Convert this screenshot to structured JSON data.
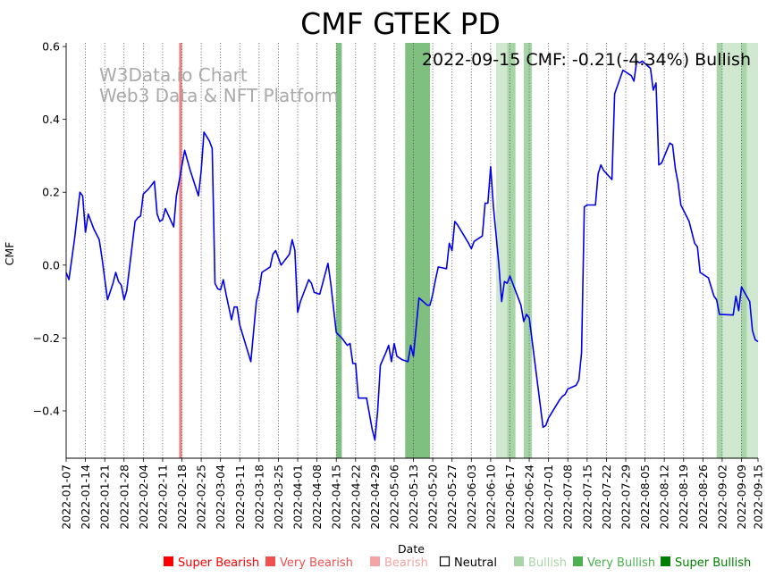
{
  "chart_data": {
    "type": "line",
    "title": "CMF GTEK PD",
    "xlabel": "Date",
    "ylabel": "CMF",
    "ylim": [
      -0.53,
      0.61
    ],
    "yticks": [
      -0.4,
      -0.2,
      0.0,
      0.2,
      0.4,
      0.6
    ],
    "ytick_labels": [
      "−0.4",
      "−0.2",
      "0.0",
      "0.2",
      "0.4",
      "0.6"
    ],
    "x_start": "2022-01-07",
    "x_end": "2022-09-15",
    "xticks": [
      "2022-01-07",
      "2022-01-14",
      "2022-01-21",
      "2022-01-28",
      "2022-02-04",
      "2022-02-11",
      "2022-02-18",
      "2022-02-25",
      "2022-03-04",
      "2022-03-11",
      "2022-03-18",
      "2022-03-25",
      "2022-04-01",
      "2022-04-08",
      "2022-04-15",
      "2022-04-22",
      "2022-04-29",
      "2022-05-06",
      "2022-05-13",
      "2022-05-20",
      "2022-05-27",
      "2022-06-03",
      "2022-06-10",
      "2022-06-17",
      "2022-06-24",
      "2022-07-01",
      "2022-07-08",
      "2022-07-15",
      "2022-07-22",
      "2022-07-29",
      "2022-08-05",
      "2022-08-12",
      "2022-08-19",
      "2022-08-26",
      "2022-09-02",
      "2022-09-09",
      "2022-09-15"
    ],
    "annotation": "2022-09-15 CMF: -0.21(-4.34%) Bullish",
    "watermark": [
      "W3Data.io Chart",
      "Web3 Data & NFT Platform"
    ],
    "series": [
      {
        "name": "CMF",
        "color": "#0000ee",
        "points": [
          [
            "2022-01-07",
            -0.02
          ],
          [
            "2022-01-08",
            -0.04
          ],
          [
            "2022-01-10",
            0.07
          ],
          [
            "2022-01-12",
            0.2
          ],
          [
            "2022-01-13",
            0.19
          ],
          [
            "2022-01-14",
            0.09
          ],
          [
            "2022-01-15",
            0.14
          ],
          [
            "2022-01-17",
            0.1
          ],
          [
            "2022-01-19",
            0.07
          ],
          [
            "2022-01-20",
            0.02
          ],
          [
            "2022-01-22",
            -0.095
          ],
          [
            "2022-01-24",
            -0.05
          ],
          [
            "2022-01-25",
            -0.02
          ],
          [
            "2022-01-26",
            -0.045
          ],
          [
            "2022-01-27",
            -0.055
          ],
          [
            "2022-01-28",
            -0.095
          ],
          [
            "2022-01-29",
            -0.07
          ],
          [
            "2022-02-01",
            0.12
          ],
          [
            "2022-02-02",
            0.13
          ],
          [
            "2022-02-03",
            0.135
          ],
          [
            "2022-02-04",
            0.195
          ],
          [
            "2022-02-06",
            0.21
          ],
          [
            "2022-02-08",
            0.23
          ],
          [
            "2022-02-09",
            0.14
          ],
          [
            "2022-02-10",
            0.12
          ],
          [
            "2022-02-11",
            0.125
          ],
          [
            "2022-02-12",
            0.155
          ],
          [
            "2022-02-15",
            0.105
          ],
          [
            "2022-02-16",
            0.19
          ],
          [
            "2022-02-17",
            0.23
          ],
          [
            "2022-02-19",
            0.315
          ],
          [
            "2022-02-21",
            0.26
          ],
          [
            "2022-02-24",
            0.19
          ],
          [
            "2022-02-25",
            0.26
          ],
          [
            "2022-02-26",
            0.365
          ],
          [
            "2022-02-28",
            0.34
          ],
          [
            "2022-03-01",
            0.32
          ],
          [
            "2022-03-02",
            -0.05
          ],
          [
            "2022-03-03",
            -0.065
          ],
          [
            "2022-03-04",
            -0.068
          ],
          [
            "2022-03-05",
            -0.04
          ],
          [
            "2022-03-06",
            -0.08
          ],
          [
            "2022-03-08",
            -0.15
          ],
          [
            "2022-03-09",
            -0.115
          ],
          [
            "2022-03-10",
            -0.115
          ],
          [
            "2022-03-11",
            -0.165
          ],
          [
            "2022-03-14",
            -0.24
          ],
          [
            "2022-03-15",
            -0.265
          ],
          [
            "2022-03-17",
            -0.1
          ],
          [
            "2022-03-18",
            -0.07
          ],
          [
            "2022-03-19",
            -0.02
          ],
          [
            "2022-03-22",
            -0.005
          ],
          [
            "2022-03-23",
            0.03
          ],
          [
            "2022-03-24",
            0.04
          ],
          [
            "2022-03-26",
            0.0
          ],
          [
            "2022-03-28",
            0.02
          ],
          [
            "2022-03-29",
            0.03
          ],
          [
            "2022-03-30",
            0.07
          ],
          [
            "2022-03-31",
            0.04
          ],
          [
            "2022-04-01",
            -0.13
          ],
          [
            "2022-04-02",
            -0.1
          ],
          [
            "2022-04-05",
            -0.04
          ],
          [
            "2022-04-06",
            -0.05
          ],
          [
            "2022-04-07",
            -0.075
          ],
          [
            "2022-04-09",
            -0.08
          ],
          [
            "2022-04-12",
            0.005
          ],
          [
            "2022-04-13",
            -0.05
          ],
          [
            "2022-04-15",
            -0.185
          ],
          [
            "2022-04-17",
            -0.2
          ],
          [
            "2022-04-19",
            -0.22
          ],
          [
            "2022-04-20",
            -0.215
          ],
          [
            "2022-04-21",
            -0.27
          ],
          [
            "2022-04-22",
            -0.27
          ],
          [
            "2022-04-23",
            -0.365
          ],
          [
            "2022-04-26",
            -0.365
          ],
          [
            "2022-04-28",
            -0.45
          ],
          [
            "2022-04-29",
            -0.48
          ],
          [
            "2022-04-30",
            -0.4
          ],
          [
            "2022-05-01",
            -0.275
          ],
          [
            "2022-05-03",
            -0.24
          ],
          [
            "2022-05-04",
            -0.22
          ],
          [
            "2022-05-05",
            -0.265
          ],
          [
            "2022-05-06",
            -0.215
          ],
          [
            "2022-05-07",
            -0.25
          ],
          [
            "2022-05-09",
            -0.26
          ],
          [
            "2022-05-11",
            -0.265
          ],
          [
            "2022-05-12",
            -0.22
          ],
          [
            "2022-05-13",
            -0.25
          ],
          [
            "2022-05-14",
            -0.17
          ],
          [
            "2022-05-15",
            -0.09
          ],
          [
            "2022-05-18",
            -0.11
          ],
          [
            "2022-05-19",
            -0.11
          ],
          [
            "2022-05-20",
            -0.08
          ],
          [
            "2022-05-21",
            -0.04
          ],
          [
            "2022-05-22",
            -0.005
          ],
          [
            "2022-05-25",
            -0.01
          ],
          [
            "2022-05-26",
            0.06
          ],
          [
            "2022-05-27",
            0.04
          ],
          [
            "2022-05-28",
            0.12
          ],
          [
            "2022-05-29",
            0.11
          ],
          [
            "2022-06-02",
            0.06
          ],
          [
            "2022-06-03",
            0.045
          ],
          [
            "2022-06-04",
            0.065
          ],
          [
            "2022-06-07",
            0.08
          ],
          [
            "2022-06-08",
            0.17
          ],
          [
            "2022-06-09",
            0.17
          ],
          [
            "2022-06-10",
            0.27
          ],
          [
            "2022-06-11",
            0.16
          ],
          [
            "2022-06-12",
            0.08
          ],
          [
            "2022-06-13",
            0.0
          ],
          [
            "2022-06-14",
            -0.1
          ],
          [
            "2022-06-15",
            -0.045
          ],
          [
            "2022-06-16",
            -0.05
          ],
          [
            "2022-06-17",
            -0.03
          ],
          [
            "2022-06-21",
            -0.11
          ],
          [
            "2022-06-22",
            -0.155
          ],
          [
            "2022-06-23",
            -0.135
          ],
          [
            "2022-06-24",
            -0.145
          ],
          [
            "2022-06-29",
            -0.445
          ],
          [
            "2022-06-30",
            -0.44
          ],
          [
            "2022-07-01",
            -0.42
          ],
          [
            "2022-07-05",
            -0.37
          ],
          [
            "2022-07-06",
            -0.36
          ],
          [
            "2022-07-07",
            -0.355
          ],
          [
            "2022-07-08",
            -0.34
          ],
          [
            "2022-07-11",
            -0.33
          ],
          [
            "2022-07-12",
            -0.315
          ],
          [
            "2022-07-13",
            -0.24
          ],
          [
            "2022-07-14",
            0.16
          ],
          [
            "2022-07-15",
            0.165
          ],
          [
            "2022-07-18",
            0.165
          ],
          [
            "2022-07-19",
            0.25
          ],
          [
            "2022-07-20",
            0.275
          ],
          [
            "2022-07-21",
            0.26
          ],
          [
            "2022-07-24",
            0.235
          ],
          [
            "2022-07-25",
            0.47
          ],
          [
            "2022-07-28",
            0.535
          ],
          [
            "2022-07-31",
            0.52
          ],
          [
            "2022-08-01",
            0.505
          ],
          [
            "2022-08-02",
            0.56
          ],
          [
            "2022-08-03",
            0.555
          ],
          [
            "2022-08-04",
            0.56
          ],
          [
            "2022-08-07",
            0.54
          ],
          [
            "2022-08-08",
            0.48
          ],
          [
            "2022-08-09",
            0.5
          ],
          [
            "2022-08-10",
            0.275
          ],
          [
            "2022-08-11",
            0.28
          ],
          [
            "2022-08-14",
            0.335
          ],
          [
            "2022-08-15",
            0.33
          ],
          [
            "2022-08-16",
            0.265
          ],
          [
            "2022-08-17",
            0.225
          ],
          [
            "2022-08-18",
            0.165
          ],
          [
            "2022-08-21",
            0.12
          ],
          [
            "2022-08-23",
            0.06
          ],
          [
            "2022-08-24",
            0.05
          ],
          [
            "2022-08-25",
            -0.02
          ],
          [
            "2022-08-28",
            -0.035
          ],
          [
            "2022-08-30",
            -0.085
          ],
          [
            "2022-08-31",
            -0.095
          ],
          [
            "2022-09-01",
            -0.135
          ],
          [
            "2022-09-06",
            -0.137
          ],
          [
            "2022-09-07",
            -0.085
          ],
          [
            "2022-09-08",
            -0.125
          ],
          [
            "2022-09-09",
            -0.06
          ],
          [
            "2022-09-12",
            -0.1
          ],
          [
            "2022-09-13",
            -0.18
          ],
          [
            "2022-09-14",
            -0.205
          ],
          [
            "2022-09-15",
            -0.21
          ]
        ]
      }
    ],
    "bands": [
      {
        "start": "2022-02-17",
        "end": "2022-02-18",
        "color": "#f08080",
        "category": "Very Bearish"
      },
      {
        "start": "2022-04-15",
        "end": "2022-04-17",
        "color": "#7fbf7f",
        "category": "Very Bullish"
      },
      {
        "start": "2022-05-10",
        "end": "2022-05-19",
        "color": "#7fbf7f",
        "category": "Very Bullish"
      },
      {
        "start": "2022-06-12",
        "end": "2022-06-16",
        "color": "#d0e8d0",
        "category": "Bullish"
      },
      {
        "start": "2022-06-16",
        "end": "2022-06-19",
        "color": "#a8d5a8",
        "category": "Bullish"
      },
      {
        "start": "2022-06-22",
        "end": "2022-06-25",
        "color": "#a8d5a8",
        "category": "Bullish"
      },
      {
        "start": "2022-08-31",
        "end": "2022-09-02",
        "color": "#a8d5a8",
        "category": "Bullish"
      },
      {
        "start": "2022-09-02",
        "end": "2022-09-09",
        "color": "#d0e8d0",
        "category": "Bullish"
      },
      {
        "start": "2022-09-09",
        "end": "2022-09-11",
        "color": "#a8d5a8",
        "category": "Bullish"
      },
      {
        "start": "2022-09-11",
        "end": "2022-09-15",
        "color": "#d0e8d0",
        "category": "Bullish"
      }
    ],
    "legend": [
      {
        "label": "Super Bearish",
        "color": "#ff0000"
      },
      {
        "label": "Very Bearish",
        "color": "#f05050"
      },
      {
        "label": "Bearish",
        "color": "#f4a4a4"
      },
      {
        "label": "Neutral",
        "color": "#000000",
        "hollow": true
      },
      {
        "label": "Bullish",
        "color": "#a8d5a8"
      },
      {
        "label": "Very Bullish",
        "color": "#4caf50"
      },
      {
        "label": "Super Bullish",
        "color": "#008000"
      }
    ]
  }
}
